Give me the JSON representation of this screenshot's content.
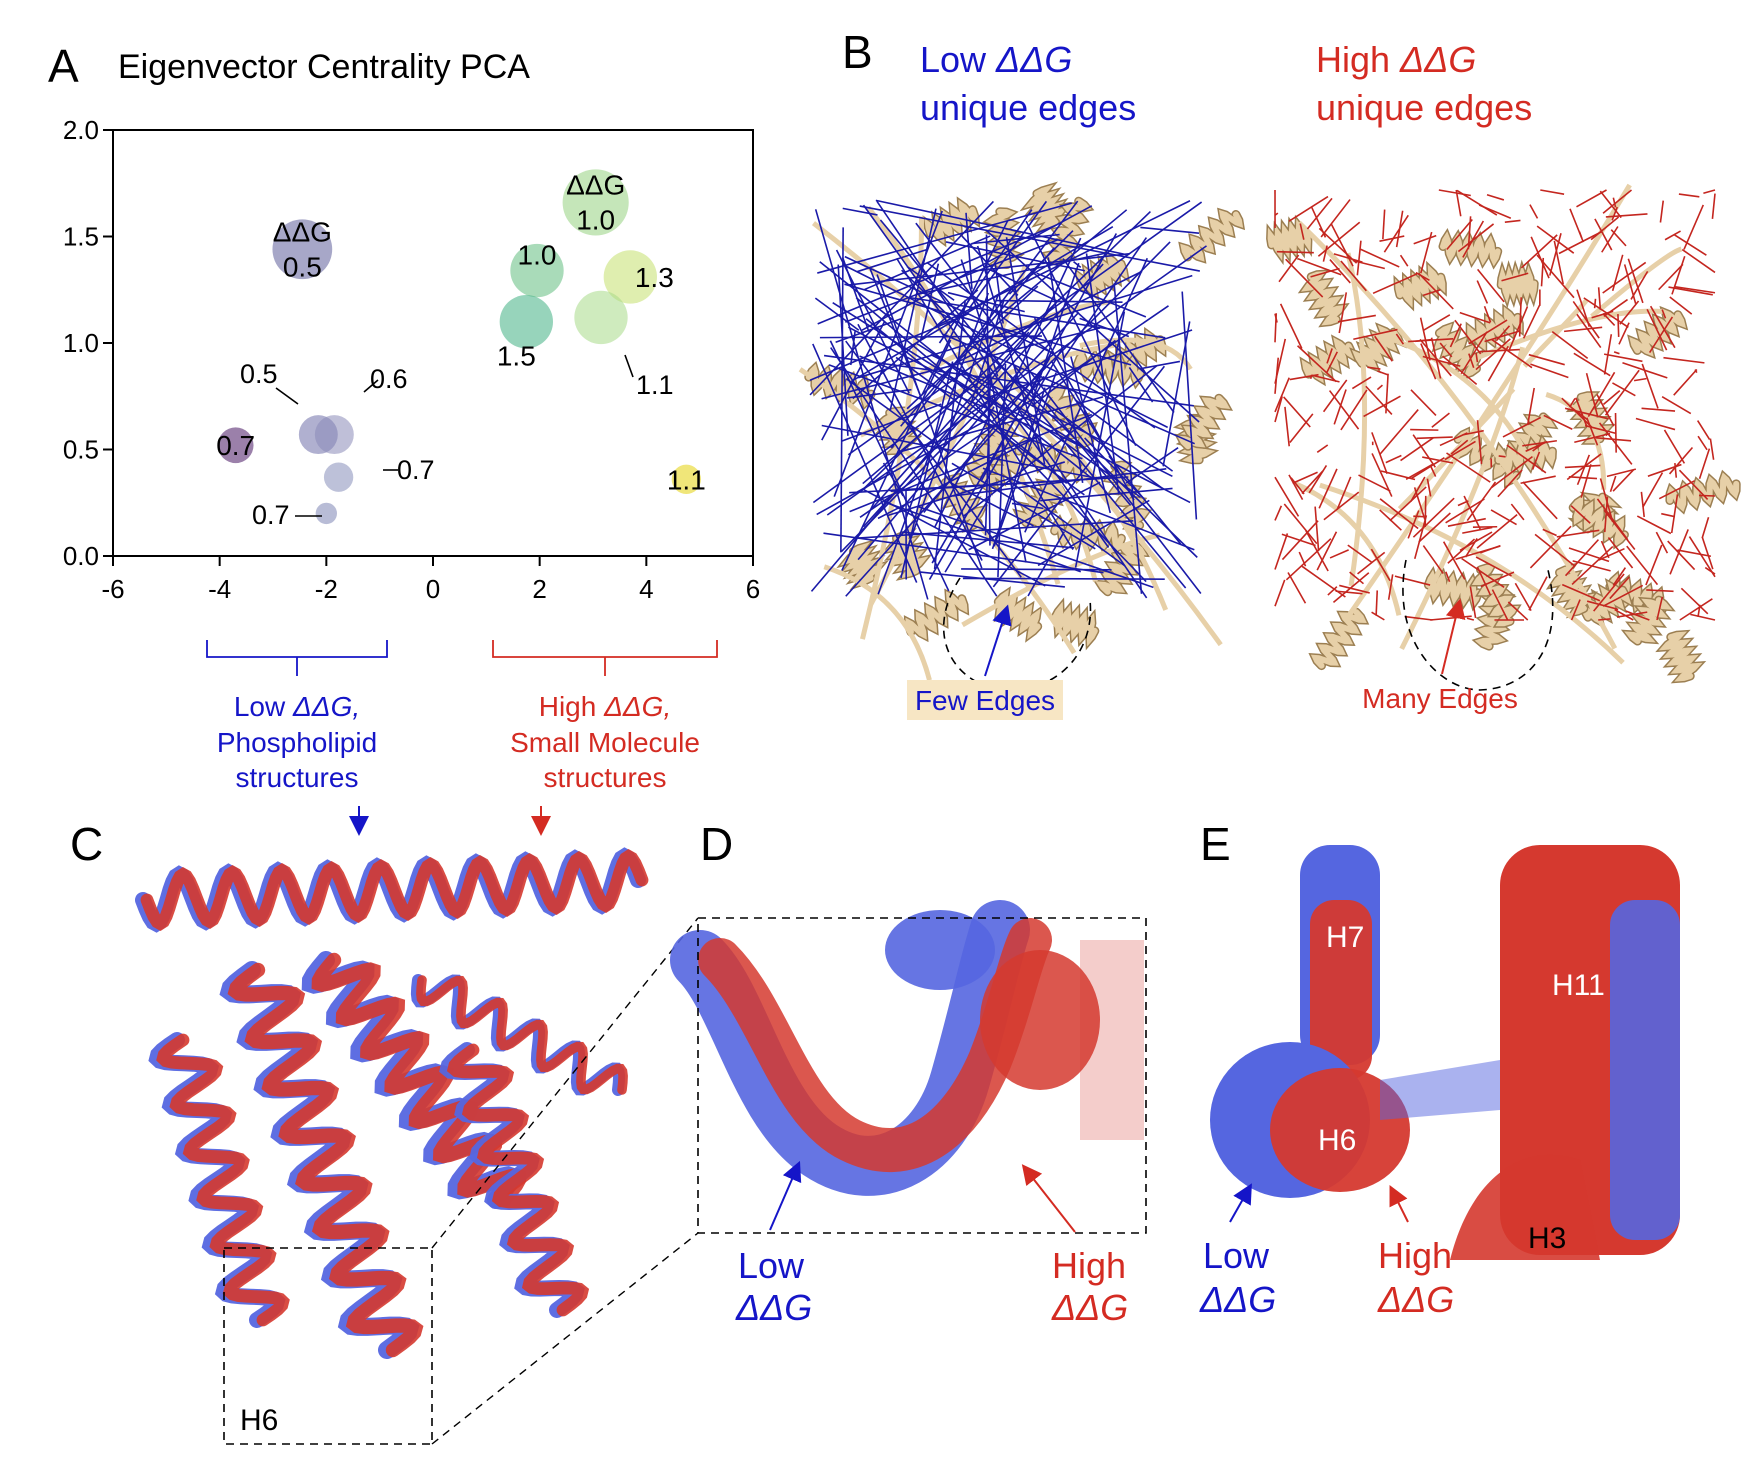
{
  "panels": {
    "A": "A",
    "B": "B",
    "C": "C",
    "D": "D",
    "E": "E"
  },
  "panel_a": {
    "title": "Eigenvector Centrality PCA",
    "brackets": {
      "low": {
        "line1_a": "Low ",
        "line1_b": "ΔΔG,",
        "line2": "Phospholipid",
        "line3": "structures"
      },
      "high": {
        "line1_a": "High ",
        "line1_b": "ΔΔG,",
        "line2": "Small Molecule",
        "line3": "structures"
      }
    }
  },
  "chart_data": {
    "type": "scatter",
    "title": "Eigenvector Centrality PCA",
    "xlabel": "",
    "ylabel": "",
    "xlim": [
      -6,
      6
    ],
    "ylim": [
      0,
      2
    ],
    "xticks": [
      "-6",
      "-4",
      "-2",
      "0",
      "2",
      "4",
      "6"
    ],
    "yticks": [
      "0.0",
      "0.5",
      "1.0",
      "1.5",
      "2.0"
    ],
    "size_legend_label": "ΔΔG",
    "points": [
      {
        "x": -2.45,
        "y": 1.44,
        "size": 0.5,
        "label": "0.5",
        "color": "#8a8ab5",
        "opacity": 0.75,
        "r_units": 1.12
      },
      {
        "x": -3.7,
        "y": 0.52,
        "size": 0.7,
        "label": "0.7",
        "color": "#8a6a9b",
        "opacity": 0.85,
        "r_units": 0.67
      },
      {
        "x": -2.15,
        "y": 0.57,
        "size": 0.5,
        "label": "0.5",
        "color": "#7c7cb0",
        "opacity": 0.6,
        "r_units": 0.73
      },
      {
        "x": -1.85,
        "y": 0.57,
        "size": 0.6,
        "label": "0.6",
        "color": "#8a8ab8",
        "opacity": 0.55,
        "r_units": 0.73
      },
      {
        "x": -1.77,
        "y": 0.37,
        "size": 0.7,
        "label": "0.7",
        "color": "#9aa0c4",
        "opacity": 0.65,
        "r_units": 0.55
      },
      {
        "x": -2.0,
        "y": 0.2,
        "size": 0.7,
        "label": "0.7",
        "color": "#9aa0c4",
        "opacity": 0.7,
        "r_units": 0.4
      },
      {
        "x": 3.05,
        "y": 1.66,
        "size": 1.0,
        "label": "1.0",
        "color": "#9fd68a",
        "opacity": 0.6,
        "r_units": 1.24
      },
      {
        "x": 1.95,
        "y": 1.34,
        "size": 1.0,
        "label": "1.0",
        "color": "#6fc38a",
        "opacity": 0.6,
        "r_units": 1.0
      },
      {
        "x": 3.7,
        "y": 1.31,
        "size": 1.3,
        "label": "1.3",
        "color": "#c9e37a",
        "opacity": 0.6,
        "r_units": 1.0
      },
      {
        "x": 1.75,
        "y": 1.1,
        "size": 1.5,
        "label": "1.5",
        "color": "#52b88e",
        "opacity": 0.6,
        "r_units": 1.0
      },
      {
        "x": 3.15,
        "y": 1.12,
        "size": 1.1,
        "label": "1.1",
        "color": "#a8da88",
        "opacity": 0.55,
        "r_units": 1.0
      },
      {
        "x": 4.75,
        "y": 0.36,
        "size": 1.1,
        "label": "1.1",
        "color": "#eee36a",
        "opacity": 0.9,
        "r_units": 0.55
      }
    ]
  },
  "panel_b": {
    "low_title_1a": "Low ",
    "low_title_1b": "ΔΔG",
    "low_title_2": "unique edges",
    "high_title_1a": "High ",
    "high_title_1b": "ΔΔG",
    "high_title_2": "unique edges",
    "few_edges": "Few Edges",
    "many_edges": "Many Edges"
  },
  "panel_c": {
    "helix_label": "H6"
  },
  "panel_d": {
    "low_1": "Low",
    "low_2": "ΔΔG",
    "high_1": "High",
    "high_2": "ΔΔG"
  },
  "panel_e": {
    "h7": "H7",
    "h11": "H11",
    "h6": "H6",
    "h3": "H3",
    "low_1": "Low",
    "low_2": "ΔΔG",
    "high_1": "High",
    "high_2": "ΔΔG"
  },
  "colors": {
    "blue": "#1515c8",
    "red": "#d42b22",
    "protein_tan": "#e7d0a8",
    "ribbon_blue": "#5566e0",
    "ribbon_red": "#d5392f",
    "few_edges_bg": "#f7e6c4"
  }
}
